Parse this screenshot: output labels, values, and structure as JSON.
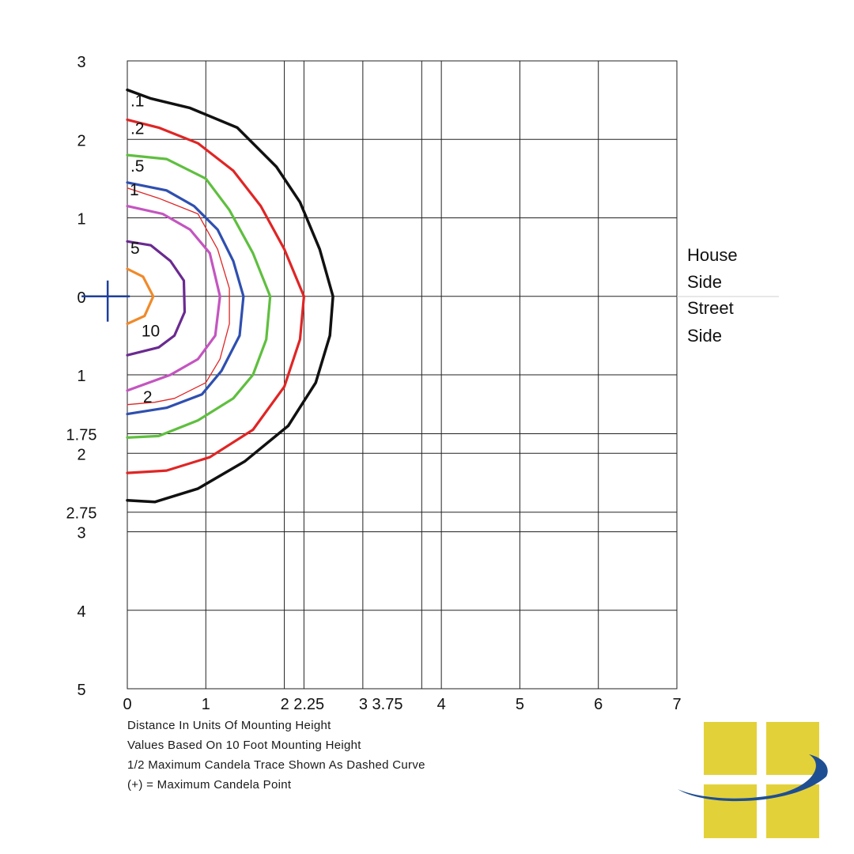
{
  "chart_data": {
    "type": "contour",
    "title": "",
    "xlabel": "Distance In Units Of Mounting Height",
    "ylabel": "",
    "xlim": [
      0,
      7
    ],
    "ylim": [
      -5,
      3
    ],
    "x_ticks": [
      {
        "value": 0,
        "label": "0"
      },
      {
        "value": 1,
        "label": "1"
      },
      {
        "value": 2,
        "label": "2"
      },
      {
        "value": 2.25,
        "label": "2.25"
      },
      {
        "value": 3,
        "label": "3"
      },
      {
        "value": 3.75,
        "label": "3.75"
      },
      {
        "value": 4,
        "label": "4"
      },
      {
        "value": 5,
        "label": "5"
      },
      {
        "value": 6,
        "label": "6"
      },
      {
        "value": 7,
        "label": "7"
      }
    ],
    "y_ticks": [
      {
        "value": 3,
        "label": "3"
      },
      {
        "value": 2,
        "label": "2"
      },
      {
        "value": 1,
        "label": "1"
      },
      {
        "value": 0,
        "label": "0"
      },
      {
        "value": -1,
        "label": "1"
      },
      {
        "value": -1.75,
        "label": "1.75"
      },
      {
        "value": -2,
        "label": "2"
      },
      {
        "value": -2.75,
        "label": "2.75"
      },
      {
        "value": -3,
        "label": "3"
      },
      {
        "value": -4,
        "label": "4"
      },
      {
        "value": -5,
        "label": "5"
      }
    ],
    "grid": true,
    "contours": [
      {
        "label": ".1",
        "color": "#111111",
        "width": 3.5,
        "label_at": [
          0.04,
          2.5
        ],
        "points": [
          [
            0,
            2.63
          ],
          [
            0.3,
            2.52
          ],
          [
            0.8,
            2.4
          ],
          [
            1.4,
            2.15
          ],
          [
            1.9,
            1.65
          ],
          [
            2.2,
            1.2
          ],
          [
            2.45,
            0.6
          ],
          [
            2.62,
            0
          ],
          [
            2.58,
            -0.5
          ],
          [
            2.4,
            -1.1
          ],
          [
            2.05,
            -1.65
          ],
          [
            1.5,
            -2.1
          ],
          [
            0.9,
            -2.45
          ],
          [
            0.35,
            -2.62
          ],
          [
            0,
            -2.6
          ]
        ]
      },
      {
        "label": ".2",
        "color": "#e02525",
        "width": 3.2,
        "label_at": [
          0.04,
          2.15
        ],
        "points": [
          [
            0,
            2.25
          ],
          [
            0.4,
            2.15
          ],
          [
            0.9,
            1.95
          ],
          [
            1.35,
            1.6
          ],
          [
            1.7,
            1.15
          ],
          [
            2.0,
            0.6
          ],
          [
            2.25,
            0
          ],
          [
            2.2,
            -0.55
          ],
          [
            2.0,
            -1.15
          ],
          [
            1.6,
            -1.7
          ],
          [
            1.05,
            -2.05
          ],
          [
            0.5,
            -2.22
          ],
          [
            0,
            -2.25
          ]
        ]
      },
      {
        "label": ".5",
        "color": "#5fbf3f",
        "width": 3.2,
        "label_at": [
          0.04,
          1.67
        ],
        "points": [
          [
            0,
            1.8
          ],
          [
            0.5,
            1.75
          ],
          [
            1.0,
            1.5
          ],
          [
            1.3,
            1.1
          ],
          [
            1.6,
            0.55
          ],
          [
            1.82,
            0
          ],
          [
            1.77,
            -0.55
          ],
          [
            1.6,
            -1.0
          ],
          [
            1.35,
            -1.3
          ],
          [
            0.9,
            -1.58
          ],
          [
            0.4,
            -1.78
          ],
          [
            0,
            -1.8
          ]
        ]
      },
      {
        "label": "1",
        "color": "#2f4fb0",
        "width": 3.2,
        "label_at": [
          0.03,
          1.37
        ],
        "points": [
          [
            0,
            1.45
          ],
          [
            0.5,
            1.35
          ],
          [
            0.85,
            1.15
          ],
          [
            1.15,
            0.85
          ],
          [
            1.35,
            0.45
          ],
          [
            1.48,
            0
          ],
          [
            1.43,
            -0.5
          ],
          [
            1.2,
            -0.95
          ],
          [
            0.95,
            -1.25
          ],
          [
            0.5,
            -1.42
          ],
          [
            0,
            -1.5
          ]
        ]
      },
      {
        "label": "2",
        "color": "#e02525",
        "width": 1.3,
        "label_at": [
          0.2,
          -1.27
        ],
        "points": [
          [
            0,
            1.38
          ],
          [
            0.4,
            1.25
          ],
          [
            0.9,
            1.05
          ],
          [
            1.15,
            0.6
          ],
          [
            1.3,
            0.1
          ],
          [
            1.3,
            -0.35
          ],
          [
            1.18,
            -0.8
          ],
          [
            1.0,
            -1.1
          ],
          [
            0.6,
            -1.3
          ],
          [
            0.35,
            -1.35
          ],
          [
            0,
            -1.38
          ]
        ]
      },
      {
        "label": "",
        "color": "#c455c0",
        "width": 3.2,
        "points": [
          [
            0,
            1.15
          ],
          [
            0.45,
            1.05
          ],
          [
            0.8,
            0.85
          ],
          [
            1.05,
            0.55
          ],
          [
            1.18,
            0
          ],
          [
            1.12,
            -0.5
          ],
          [
            0.9,
            -0.8
          ],
          [
            0.55,
            -1.0
          ],
          [
            0,
            -1.2
          ]
        ]
      },
      {
        "label": "5",
        "color": "#6a2a90",
        "width": 3.2,
        "label_at": [
          0.04,
          0.62
        ],
        "points": [
          [
            0,
            0.7
          ],
          [
            0.3,
            0.65
          ],
          [
            0.55,
            0.45
          ],
          [
            0.72,
            0.2
          ],
          [
            0.73,
            -0.2
          ],
          [
            0.6,
            -0.5
          ],
          [
            0.4,
            -0.65
          ],
          [
            0,
            -0.75
          ]
        ]
      },
      {
        "label": "10",
        "color": "#f08a2a",
        "width": 3.2,
        "label_at": [
          0.18,
          -0.43
        ],
        "points": [
          [
            0,
            0.35
          ],
          [
            0.2,
            0.25
          ],
          [
            0.33,
            0
          ],
          [
            0.22,
            -0.25
          ],
          [
            0,
            -0.35
          ]
        ]
      }
    ],
    "max_candela_point": [
      -0.25,
      0
    ],
    "annotations": [
      "House",
      "Side",
      "Street",
      "Side"
    ]
  },
  "notes": [
    "Distance In Units Of Mounting Height",
    "Values Based On 10 Foot Mounting Height",
    "1/2 Maximum Candela Trace Shown As Dashed Curve",
    "(+) = Maximum Candela Point"
  ],
  "colors": {
    "logo_yellow": "#e3d13a",
    "logo_blue": "#1f4f93"
  },
  "logo": {
    "icon": "window-swoosh-logo"
  }
}
